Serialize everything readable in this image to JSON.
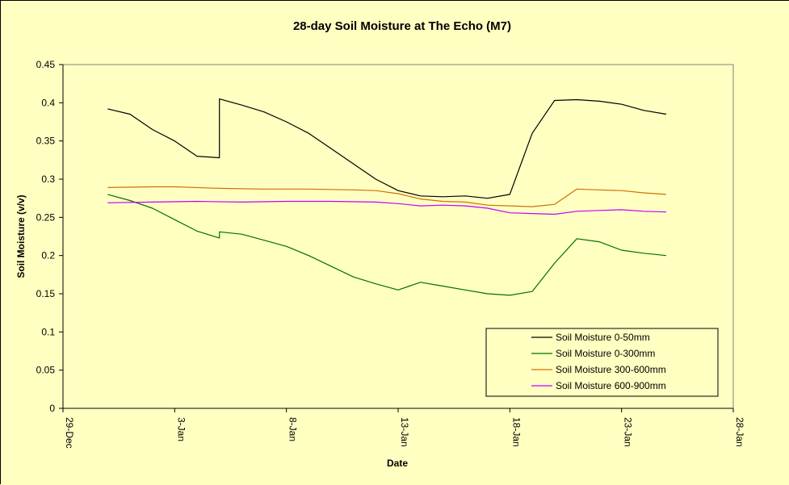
{
  "chart_data": {
    "type": "line",
    "title": "28-day Soil Moisture at The Echo (M7)",
    "xlabel": "Date",
    "ylabel": "Soil Moisture (v/v)",
    "x_tick_labels": [
      "29-Dec",
      "3-Jan",
      "8-Jan",
      "13-Jan",
      "18-Jan",
      "23-Jan",
      "28-Jan"
    ],
    "y_tick_labels": [
      "0",
      "0.05",
      "0.1",
      "0.15",
      "0.2",
      "0.25",
      "0.3",
      "0.35",
      "0.4",
      "0.45"
    ],
    "xlim": [
      "29-Dec",
      "28-Jan"
    ],
    "ylim": [
      0,
      0.45
    ],
    "grid": false,
    "legend_position": "bottom-right",
    "colors": {
      "background": "#ffffc2",
      "plot_area": "#ffffc2"
    },
    "series": [
      {
        "name": "Soil Moisture 0-50mm",
        "color": "#000000",
        "points": [
          [
            "31-Dec",
            0.392
          ],
          [
            "1-Jan",
            0.385
          ],
          [
            "2-Jan",
            0.365
          ],
          [
            "3-Jan",
            0.35
          ],
          [
            "4-Jan",
            0.33
          ],
          [
            "5-Jan",
            0.328
          ],
          [
            "5-Jan",
            0.405
          ],
          [
            "6-Jan",
            0.397
          ],
          [
            "7-Jan",
            0.388
          ],
          [
            "8-Jan",
            0.375
          ],
          [
            "9-Jan",
            0.36
          ],
          [
            "10-Jan",
            0.34
          ],
          [
            "11-Jan",
            0.32
          ],
          [
            "12-Jan",
            0.3
          ],
          [
            "13-Jan",
            0.285
          ],
          [
            "14-Jan",
            0.278
          ],
          [
            "15-Jan",
            0.277
          ],
          [
            "16-Jan",
            0.278
          ],
          [
            "17-Jan",
            0.275
          ],
          [
            "18-Jan",
            0.28
          ],
          [
            "19-Jan",
            0.36
          ],
          [
            "20-Jan",
            0.403
          ],
          [
            "21-Jan",
            0.404
          ],
          [
            "22-Jan",
            0.402
          ],
          [
            "23-Jan",
            0.398
          ],
          [
            "24-Jan",
            0.39
          ],
          [
            "25-Jan",
            0.385
          ]
        ]
      },
      {
        "name": "Soil Moisture 0-300mm",
        "color": "#007000",
        "points": [
          [
            "31-Dec",
            0.28
          ],
          [
            "1-Jan",
            0.272
          ],
          [
            "2-Jan",
            0.262
          ],
          [
            "3-Jan",
            0.247
          ],
          [
            "4-Jan",
            0.232
          ],
          [
            "5-Jan",
            0.223
          ],
          [
            "5-Jan",
            0.231
          ],
          [
            "6-Jan",
            0.228
          ],
          [
            "7-Jan",
            0.22
          ],
          [
            "8-Jan",
            0.212
          ],
          [
            "9-Jan",
            0.2
          ],
          [
            "10-Jan",
            0.186
          ],
          [
            "11-Jan",
            0.172
          ],
          [
            "12-Jan",
            0.163
          ],
          [
            "13-Jan",
            0.155
          ],
          [
            "14-Jan",
            0.165
          ],
          [
            "15-Jan",
            0.16
          ],
          [
            "16-Jan",
            0.155
          ],
          [
            "17-Jan",
            0.15
          ],
          [
            "18-Jan",
            0.148
          ],
          [
            "19-Jan",
            0.153
          ],
          [
            "20-Jan",
            0.19
          ],
          [
            "21-Jan",
            0.222
          ],
          [
            "22-Jan",
            0.218
          ],
          [
            "23-Jan",
            0.207
          ],
          [
            "24-Jan",
            0.203
          ],
          [
            "25-Jan",
            0.2
          ]
        ]
      },
      {
        "name": "Soil Moisture 300-600mm",
        "color": "#d07000",
        "points": [
          [
            "31-Dec",
            0.289
          ],
          [
            "2-Jan",
            0.29
          ],
          [
            "3-Jan",
            0.29
          ],
          [
            "5-Jan",
            0.288
          ],
          [
            "7-Jan",
            0.287
          ],
          [
            "9-Jan",
            0.287
          ],
          [
            "11-Jan",
            0.286
          ],
          [
            "12-Jan",
            0.285
          ],
          [
            "13-Jan",
            0.281
          ],
          [
            "14-Jan",
            0.274
          ],
          [
            "15-Jan",
            0.271
          ],
          [
            "16-Jan",
            0.27
          ],
          [
            "17-Jan",
            0.266
          ],
          [
            "18-Jan",
            0.265
          ],
          [
            "19-Jan",
            0.264
          ],
          [
            "20-Jan",
            0.267
          ],
          [
            "21-Jan",
            0.287
          ],
          [
            "22-Jan",
            0.286
          ],
          [
            "23-Jan",
            0.285
          ],
          [
            "24-Jan",
            0.282
          ],
          [
            "25-Jan",
            0.28
          ]
        ]
      },
      {
        "name": "Soil Moisture 600-900mm",
        "color": "#c000ff",
        "points": [
          [
            "31-Dec",
            0.269
          ],
          [
            "2-Jan",
            0.27
          ],
          [
            "4-Jan",
            0.271
          ],
          [
            "6-Jan",
            0.27
          ],
          [
            "8-Jan",
            0.271
          ],
          [
            "10-Jan",
            0.271
          ],
          [
            "12-Jan",
            0.27
          ],
          [
            "13-Jan",
            0.268
          ],
          [
            "14-Jan",
            0.265
          ],
          [
            "15-Jan",
            0.266
          ],
          [
            "16-Jan",
            0.265
          ],
          [
            "17-Jan",
            0.262
          ],
          [
            "18-Jan",
            0.256
          ],
          [
            "19-Jan",
            0.255
          ],
          [
            "20-Jan",
            0.254
          ],
          [
            "21-Jan",
            0.258
          ],
          [
            "22-Jan",
            0.259
          ],
          [
            "23-Jan",
            0.26
          ],
          [
            "24-Jan",
            0.258
          ],
          [
            "25-Jan",
            0.257
          ]
        ]
      }
    ]
  }
}
